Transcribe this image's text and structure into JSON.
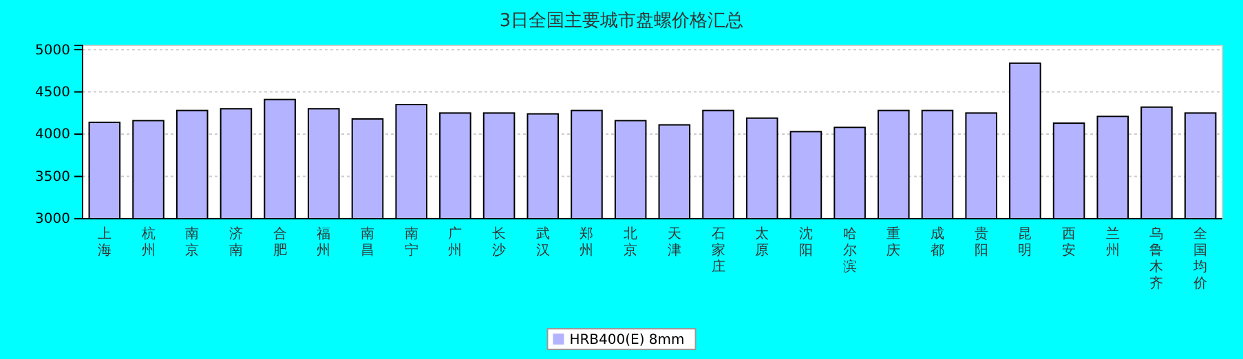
{
  "chart_data": {
    "type": "bar",
    "title": "3日全国主要城市盘螺价格汇总",
    "categories": [
      "上海",
      "杭州",
      "南京",
      "济南",
      "合肥",
      "福州",
      "南昌",
      "南宁",
      "广州",
      "长沙",
      "武汉",
      "郑州",
      "北京",
      "天津",
      "石家庄",
      "太原",
      "沈阳",
      "哈尔滨",
      "重庆",
      "成都",
      "贵阳",
      "昆明",
      "西安",
      "兰州",
      "乌鲁木齐",
      "全国均价"
    ],
    "series": [
      {
        "name": "HRB400(E) 8mm",
        "color": "#b3b3ff",
        "values": [
          4140,
          4160,
          4280,
          4300,
          4410,
          4300,
          4180,
          4350,
          4250,
          4250,
          4240,
          4280,
          4160,
          4110,
          4280,
          4190,
          4030,
          4080,
          4280,
          4280,
          4250,
          4840,
          4130,
          4210,
          4320,
          4250
        ]
      }
    ],
    "ylim": [
      3000,
      5050
    ],
    "yticks": [
      3000,
      3500,
      4000,
      4500,
      5000
    ],
    "grid": "y",
    "legend": "bottom"
  }
}
